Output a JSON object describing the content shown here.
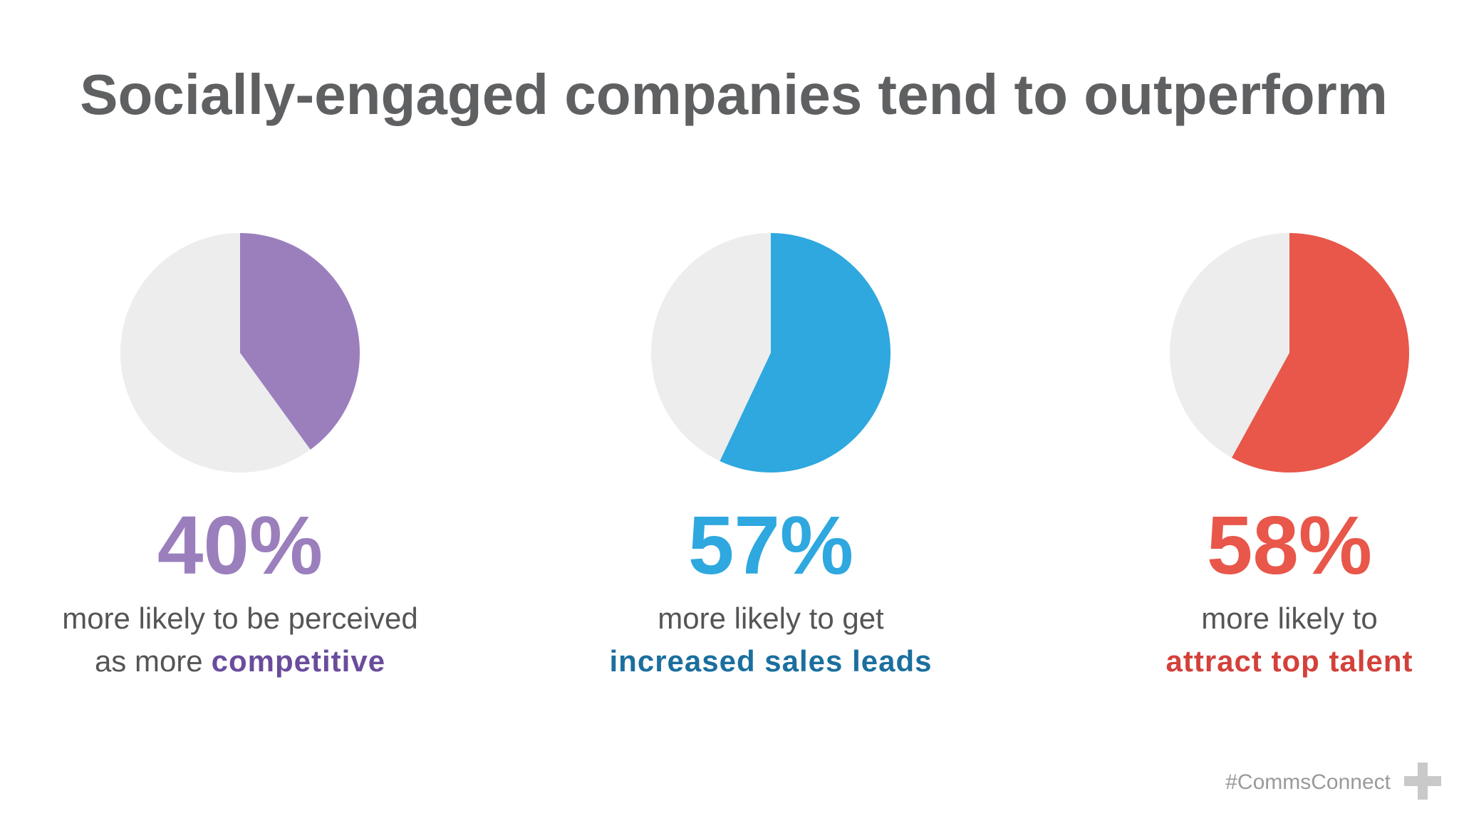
{
  "title": "Socially-engaged companies tend to outperform",
  "chart_data": [
    {
      "type": "pie",
      "values": [
        40
      ],
      "value_labels": [
        "40%"
      ],
      "color": "#9b7fbd",
      "emphasis_color": "#6a4c9c",
      "caption_line1": "more likely to be perceived",
      "caption_prefix": "as more",
      "caption_emphasis": "competitive"
    },
    {
      "type": "pie",
      "values": [
        57
      ],
      "value_labels": [
        "57%"
      ],
      "color": "#2ea8df",
      "emphasis_color": "#1a6f9e",
      "caption_line1": "more likely to get",
      "caption_emphasis": "increased sales leads"
    },
    {
      "type": "pie",
      "values": [
        58
      ],
      "value_labels": [
        "58%"
      ],
      "color": "#e8574a",
      "emphasis_color": "#d2413a",
      "caption_line1": "more likely to",
      "caption_emphasis": "attract top talent"
    }
  ],
  "footer": "#CommsConnect"
}
